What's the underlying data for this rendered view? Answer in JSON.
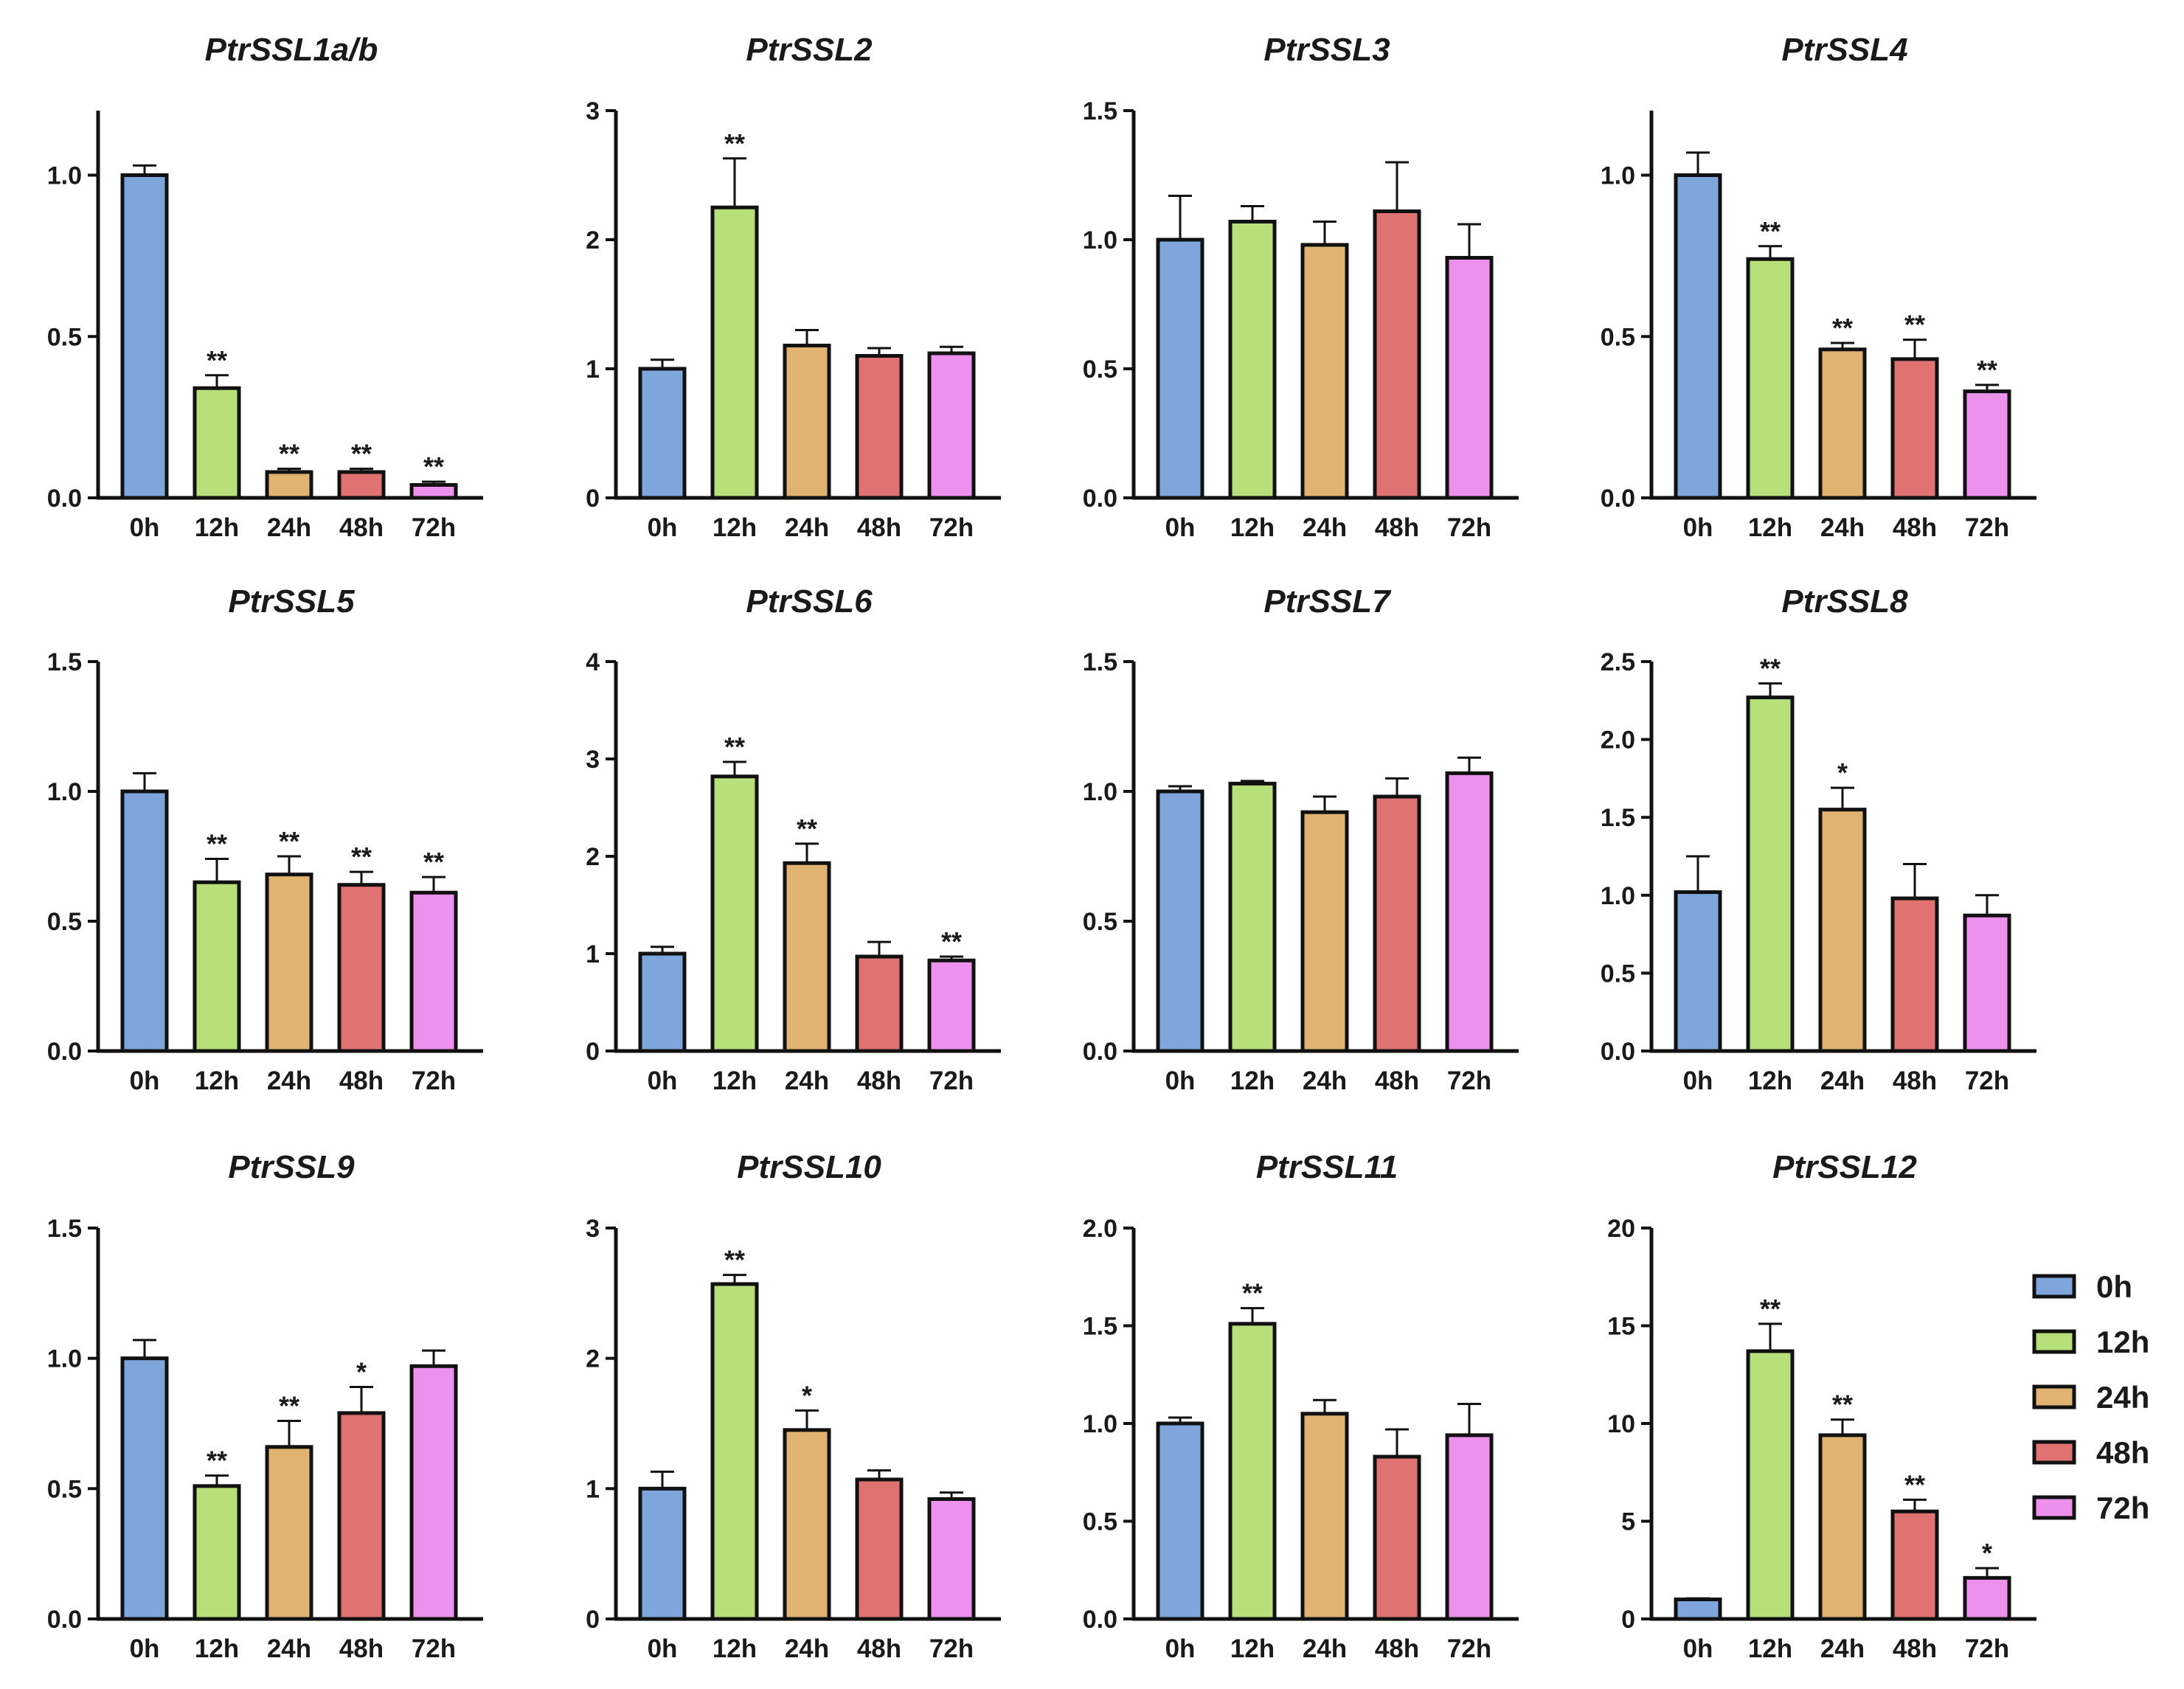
{
  "chart_data": [
    {
      "type": "bar",
      "title": "PtrSSL1a/b",
      "categories": [
        "0h",
        "12h",
        "24h",
        "48h",
        "72h"
      ],
      "values": [
        1.0,
        0.34,
        0.08,
        0.08,
        0.04
      ],
      "errors": [
        0.03,
        0.04,
        0.01,
        0.01,
        0.01
      ],
      "significance": [
        "",
        "**",
        "**",
        "**",
        "**"
      ],
      "ylim": [
        0,
        1.2
      ],
      "yticks": [
        "0.0",
        "0.5",
        "1.0"
      ],
      "ytick_values": [
        0,
        0.5,
        1.0
      ]
    },
    {
      "type": "bar",
      "title": "PtrSSL2",
      "categories": [
        "0h",
        "12h",
        "24h",
        "48h",
        "72h"
      ],
      "values": [
        1.0,
        2.25,
        1.18,
        1.1,
        1.12
      ],
      "errors": [
        0.07,
        0.38,
        0.12,
        0.06,
        0.05
      ],
      "significance": [
        "",
        "**",
        "",
        "",
        ""
      ],
      "ylim": [
        0,
        3
      ],
      "yticks": [
        "0",
        "1",
        "2",
        "3"
      ],
      "ytick_values": [
        0,
        1,
        2,
        3
      ]
    },
    {
      "type": "bar",
      "title": "PtrSSL3",
      "categories": [
        "0h",
        "12h",
        "24h",
        "48h",
        "72h"
      ],
      "values": [
        1.0,
        1.07,
        0.98,
        1.11,
        0.93
      ],
      "errors": [
        0.17,
        0.06,
        0.09,
        0.19,
        0.13
      ],
      "significance": [
        "",
        "",
        "",
        "",
        ""
      ],
      "ylim": [
        0,
        1.5
      ],
      "yticks": [
        "0.0",
        "0.5",
        "1.0",
        "1.5"
      ],
      "ytick_values": [
        0,
        0.5,
        1.0,
        1.5
      ]
    },
    {
      "type": "bar",
      "title": "PtrSSL4",
      "categories": [
        "0h",
        "12h",
        "24h",
        "48h",
        "72h"
      ],
      "values": [
        1.0,
        0.74,
        0.46,
        0.43,
        0.33
      ],
      "errors": [
        0.07,
        0.04,
        0.02,
        0.06,
        0.02
      ],
      "significance": [
        "",
        "**",
        "**",
        "**",
        "**"
      ],
      "ylim": [
        0,
        1.2
      ],
      "yticks": [
        "0.0",
        "0.5",
        "1.0"
      ],
      "ytick_values": [
        0,
        0.5,
        1.0
      ]
    },
    {
      "type": "bar",
      "title": "PtrSSL5",
      "categories": [
        "0h",
        "12h",
        "24h",
        "48h",
        "72h"
      ],
      "values": [
        1.0,
        0.65,
        0.68,
        0.64,
        0.61
      ],
      "errors": [
        0.07,
        0.09,
        0.07,
        0.05,
        0.06
      ],
      "significance": [
        "",
        "**",
        "**",
        "**",
        "**"
      ],
      "ylim": [
        0,
        1.5
      ],
      "yticks": [
        "0.0",
        "0.5",
        "1.0",
        "1.5"
      ],
      "ytick_values": [
        0,
        0.5,
        1.0,
        1.5
      ]
    },
    {
      "type": "bar",
      "title": "PtrSSL6",
      "categories": [
        "0h",
        "12h",
        "24h",
        "48h",
        "72h"
      ],
      "values": [
        1.0,
        2.82,
        1.93,
        0.97,
        0.93
      ],
      "errors": [
        0.07,
        0.15,
        0.2,
        0.15,
        0.04
      ],
      "significance": [
        "",
        "**",
        "**",
        "",
        "**"
      ],
      "ylim": [
        0,
        4
      ],
      "yticks": [
        "0",
        "1",
        "2",
        "3",
        "4"
      ],
      "ytick_values": [
        0,
        1,
        2,
        3,
        4
      ]
    },
    {
      "type": "bar",
      "title": "PtrSSL7",
      "categories": [
        "0h",
        "12h",
        "24h",
        "48h",
        "72h"
      ],
      "values": [
        1.0,
        1.03,
        0.92,
        0.98,
        1.07
      ],
      "errors": [
        0.02,
        0.01,
        0.06,
        0.07,
        0.06
      ],
      "significance": [
        "",
        "",
        "",
        "",
        ""
      ],
      "ylim": [
        0,
        1.5
      ],
      "yticks": [
        "0.0",
        "0.5",
        "1.0",
        "1.5"
      ],
      "ytick_values": [
        0,
        0.5,
        1.0,
        1.5
      ]
    },
    {
      "type": "bar",
      "title": "PtrSSL8",
      "categories": [
        "0h",
        "12h",
        "24h",
        "48h",
        "72h"
      ],
      "values": [
        1.02,
        2.27,
        1.55,
        0.98,
        0.87
      ],
      "errors": [
        0.23,
        0.09,
        0.14,
        0.22,
        0.13
      ],
      "significance": [
        "",
        "**",
        "*",
        "",
        ""
      ],
      "ylim": [
        0,
        2.5
      ],
      "yticks": [
        "0.0",
        "0.5",
        "1.0",
        "1.5",
        "2.0",
        "2.5"
      ],
      "ytick_values": [
        0,
        0.5,
        1.0,
        1.5,
        2.0,
        2.5
      ]
    },
    {
      "type": "bar",
      "title": "PtrSSL9",
      "categories": [
        "0h",
        "12h",
        "24h",
        "48h",
        "72h"
      ],
      "values": [
        1.0,
        0.51,
        0.66,
        0.79,
        0.97
      ],
      "errors": [
        0.07,
        0.04,
        0.1,
        0.1,
        0.06
      ],
      "significance": [
        "",
        "**",
        "**",
        "*",
        ""
      ],
      "ylim": [
        0,
        1.5
      ],
      "yticks": [
        "0.0",
        "0.5",
        "1.0",
        "1.5"
      ],
      "ytick_values": [
        0,
        0.5,
        1.0,
        1.5
      ]
    },
    {
      "type": "bar",
      "title": "PtrSSL10",
      "categories": [
        "0h",
        "12h",
        "24h",
        "48h",
        "72h"
      ],
      "values": [
        1.0,
        2.57,
        1.45,
        1.07,
        0.92
      ],
      "errors": [
        0.13,
        0.07,
        0.15,
        0.07,
        0.05
      ],
      "significance": [
        "",
        "**",
        "*",
        "",
        ""
      ],
      "ylim": [
        0,
        3
      ],
      "yticks": [
        "0",
        "1",
        "2",
        "3"
      ],
      "ytick_values": [
        0,
        1,
        2,
        3
      ]
    },
    {
      "type": "bar",
      "title": "PtrSSL11",
      "categories": [
        "0h",
        "12h",
        "24h",
        "48h",
        "72h"
      ],
      "values": [
        1.0,
        1.51,
        1.05,
        0.83,
        0.94
      ],
      "errors": [
        0.03,
        0.08,
        0.07,
        0.14,
        0.16
      ],
      "significance": [
        "",
        "**",
        "",
        "",
        ""
      ],
      "ylim": [
        0,
        2.0
      ],
      "yticks": [
        "0.0",
        "0.5",
        "1.0",
        "1.5",
        "2.0"
      ],
      "ytick_values": [
        0,
        0.5,
        1.0,
        1.5,
        2.0
      ]
    },
    {
      "type": "bar",
      "title": "PtrSSL12",
      "categories": [
        "0h",
        "12h",
        "24h",
        "48h",
        "72h"
      ],
      "values": [
        1.0,
        13.7,
        9.4,
        5.5,
        2.1
      ],
      "errors": [
        0.05,
        1.4,
        0.8,
        0.6,
        0.5
      ],
      "significance": [
        "",
        "**",
        "**",
        "**",
        "*"
      ],
      "ylim": [
        0,
        20
      ],
      "yticks": [
        "0",
        "5",
        "10",
        "15",
        "20"
      ],
      "ytick_values": [
        0,
        5,
        10,
        15,
        20
      ]
    }
  ],
  "legend": {
    "items": [
      {
        "label": "0h",
        "color": "#7ea6dc"
      },
      {
        "label": "12h",
        "color": "#b8e07a"
      },
      {
        "label": "24h",
        "color": "#e0b370"
      },
      {
        "label": "48h",
        "color": "#e07272"
      },
      {
        "label": "72h",
        "color": "#ee90ee"
      }
    ]
  }
}
